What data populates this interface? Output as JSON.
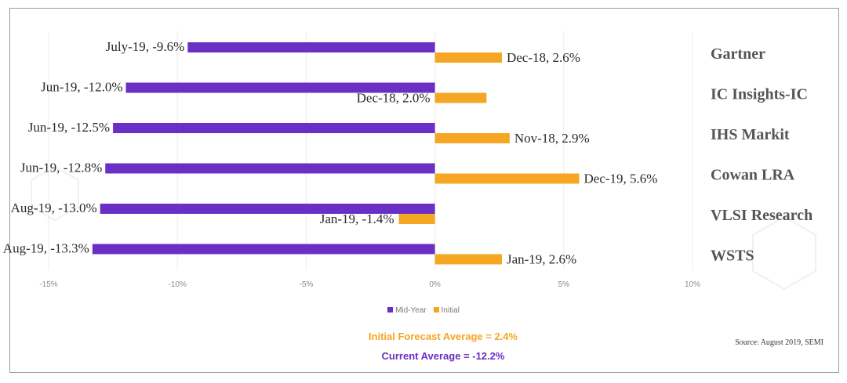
{
  "chart_data": {
    "type": "bar",
    "orientation": "horizontal",
    "categories": [
      "Gartner",
      "IC Insights-IC",
      "IHS Markit",
      "Cowan LRA",
      "VLSI Research",
      "WSTS"
    ],
    "series": [
      {
        "name": "Mid-Year",
        "color": "#6a2fc4",
        "values": [
          -9.6,
          -12.0,
          -12.5,
          -12.8,
          -13.0,
          -13.3
        ],
        "labels": [
          "July-19, -9.6%",
          "Jun-19, -12.0%",
          "Jun-19, -12.5%",
          "Jun-19, -12.8%",
          "Aug-19, -13.0%",
          "Aug-19, -13.3%"
        ]
      },
      {
        "name": "Initial",
        "color": "#f5a623",
        "values": [
          2.6,
          2.0,
          2.9,
          5.6,
          -1.4,
          2.6
        ],
        "labels": [
          "Dec-18, 2.6%",
          "Dec-18, 2.0%",
          "Nov-18, 2.9%",
          "Dec-19, 5.6%",
          "Jan-19, -1.4%",
          "Jan-19, 2.6%"
        ]
      }
    ],
    "xlim": [
      -15,
      10
    ],
    "xticks": [
      "-15%",
      "-10%",
      "-5%",
      "0%",
      "5%",
      "10%"
    ],
    "xtick_values": [
      -15,
      -10,
      -5,
      0,
      5,
      10
    ],
    "legend_position": "bottom"
  },
  "annotations": {
    "initial_forecast": "Initial Forecast Average = 2.4%",
    "current_average": "Current Average = -12.2%",
    "source": "Source: August 2019, SEMI"
  }
}
